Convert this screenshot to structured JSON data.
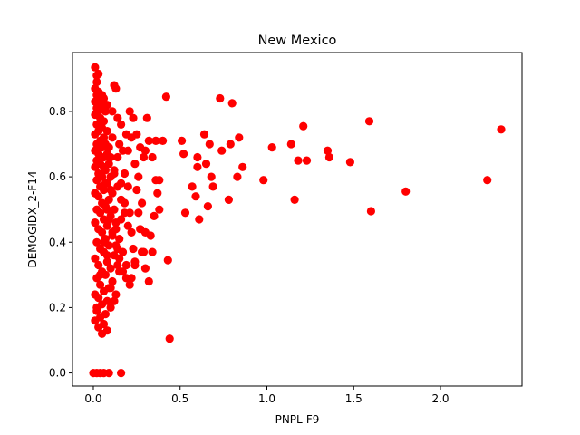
{
  "chart_data": {
    "type": "scatter",
    "title": "New Mexico",
    "xlabel": "PNPL-F9",
    "ylabel": "DEMOGIDX_2-F14",
    "xlim": [
      -0.12,
      2.47
    ],
    "ylim": [
      -0.04,
      0.98
    ],
    "xticks": [
      0.0,
      0.5,
      1.0,
      1.5,
      2.0
    ],
    "xtick_labels": [
      "0.0",
      "0.5",
      "1.0",
      "1.5",
      "2.0"
    ],
    "yticks": [
      0.0,
      0.2,
      0.4,
      0.6,
      0.8
    ],
    "ytick_labels": [
      "0.0",
      "0.2",
      "0.4",
      "0.6",
      "0.8"
    ],
    "grid": false,
    "marker_color": "#ff0000",
    "series": [
      {
        "points": [
          [
            0.01,
            0.935
          ],
          [
            0.02,
            0.91
          ],
          [
            0.03,
            0.915
          ],
          [
            0.02,
            0.89
          ],
          [
            0.01,
            0.87
          ],
          [
            0.03,
            0.86
          ],
          [
            0.02,
            0.85
          ],
          [
            0.05,
            0.85
          ],
          [
            0.01,
            0.83
          ],
          [
            0.04,
            0.83
          ],
          [
            0.06,
            0.84
          ],
          [
            0.02,
            0.81
          ],
          [
            0.05,
            0.81
          ],
          [
            0.03,
            0.8
          ],
          [
            0.07,
            0.8
          ],
          [
            0.01,
            0.79
          ],
          [
            0.04,
            0.78
          ],
          [
            0.06,
            0.77
          ],
          [
            0.02,
            0.76
          ],
          [
            0.05,
            0.75
          ],
          [
            0.03,
            0.74
          ],
          [
            0.08,
            0.74
          ],
          [
            0.01,
            0.73
          ],
          [
            0.06,
            0.72
          ],
          [
            0.04,
            0.71
          ],
          [
            0.02,
            0.7
          ],
          [
            0.07,
            0.7
          ],
          [
            0.05,
            0.69
          ],
          [
            0.01,
            0.68
          ],
          [
            0.03,
            0.67
          ],
          [
            0.08,
            0.67
          ],
          [
            0.06,
            0.66
          ],
          [
            0.02,
            0.65
          ],
          [
            0.04,
            0.64
          ],
          [
            0.09,
            0.64
          ],
          [
            0.01,
            0.63
          ],
          [
            0.07,
            0.62
          ],
          [
            0.03,
            0.61
          ],
          [
            0.05,
            0.6
          ],
          [
            0.1,
            0.6
          ],
          [
            0.02,
            0.59
          ],
          [
            0.08,
            0.58
          ],
          [
            0.04,
            0.57
          ],
          [
            0.06,
            0.56
          ],
          [
            0.01,
            0.55
          ],
          [
            0.11,
            0.55
          ],
          [
            0.03,
            0.54
          ],
          [
            0.09,
            0.53
          ],
          [
            0.05,
            0.52
          ],
          [
            0.07,
            0.51
          ],
          [
            0.02,
            0.5
          ],
          [
            0.12,
            0.5
          ],
          [
            0.04,
            0.49
          ],
          [
            0.1,
            0.48
          ],
          [
            0.06,
            0.47
          ],
          [
            0.01,
            0.46
          ],
          [
            0.08,
            0.45
          ],
          [
            0.03,
            0.44
          ],
          [
            0.13,
            0.44
          ],
          [
            0.05,
            0.43
          ],
          [
            0.11,
            0.42
          ],
          [
            0.07,
            0.41
          ],
          [
            0.02,
            0.4
          ],
          [
            0.09,
            0.39
          ],
          [
            0.04,
            0.38
          ],
          [
            0.14,
            0.38
          ],
          [
            0.06,
            0.37
          ],
          [
            0.12,
            0.36
          ],
          [
            0.01,
            0.35
          ],
          [
            0.08,
            0.34
          ],
          [
            0.03,
            0.33
          ],
          [
            0.1,
            0.32
          ],
          [
            0.05,
            0.31
          ],
          [
            0.15,
            0.31
          ],
          [
            0.07,
            0.3
          ],
          [
            0.02,
            0.29
          ],
          [
            0.11,
            0.28
          ],
          [
            0.04,
            0.27
          ],
          [
            0.09,
            0.26
          ],
          [
            0.06,
            0.25
          ],
          [
            0.01,
            0.24
          ],
          [
            0.13,
            0.24
          ],
          [
            0.03,
            0.23
          ],
          [
            0.08,
            0.22
          ],
          [
            0.05,
            0.21
          ],
          [
            0.1,
            0.2
          ],
          [
            0.02,
            0.19
          ],
          [
            0.07,
            0.18
          ],
          [
            0.04,
            0.17
          ],
          [
            0.01,
            0.16
          ],
          [
            0.06,
            0.15
          ],
          [
            0.03,
            0.14
          ],
          [
            0.08,
            0.13
          ],
          [
            0.05,
            0.12
          ],
          [
            0.02,
            0.2
          ],
          [
            0.04,
            0.3
          ],
          [
            0.06,
            0.4
          ],
          [
            0.08,
            0.5
          ],
          [
            0.1,
            0.56
          ],
          [
            0.12,
            0.62
          ],
          [
            0.14,
            0.66
          ],
          [
            0.16,
            0.58
          ],
          [
            0.18,
            0.52
          ],
          [
            0.13,
            0.46
          ],
          [
            0.15,
            0.41
          ],
          [
            0.17,
            0.37
          ],
          [
            0.19,
            0.33
          ],
          [
            0.16,
            0.47
          ],
          [
            0.18,
            0.61
          ],
          [
            0.2,
            0.57
          ],
          [
            0.21,
            0.49
          ],
          [
            0.22,
            0.43
          ],
          [
            0.23,
            0.38
          ],
          [
            0.24,
            0.33
          ],
          [
            0.2,
            0.68
          ],
          [
            0.22,
            0.72
          ],
          [
            0.24,
            0.64
          ],
          [
            0.25,
            0.56
          ],
          [
            0.26,
            0.49
          ],
          [
            0.27,
            0.44
          ],
          [
            0.28,
            0.37
          ],
          [
            0.3,
            0.32
          ],
          [
            0.32,
            0.28
          ],
          [
            0.34,
            0.37
          ],
          [
            0.3,
            0.43
          ],
          [
            0.28,
            0.52
          ],
          [
            0.26,
            0.6
          ],
          [
            0.3,
            0.68
          ],
          [
            0.32,
            0.71
          ],
          [
            0.34,
            0.66
          ],
          [
            0.36,
            0.59
          ],
          [
            0.37,
            0.55
          ],
          [
            0.38,
            0.5
          ],
          [
            0.35,
            0.48
          ],
          [
            0.33,
            0.42
          ],
          [
            0.29,
            0.37
          ],
          [
            0.24,
            0.34
          ],
          [
            0.22,
            0.29
          ],
          [
            0.12,
            0.88
          ],
          [
            0.13,
            0.87
          ],
          [
            0.08,
            0.82
          ],
          [
            0.11,
            0.8
          ],
          [
            0.14,
            0.78
          ],
          [
            0.16,
            0.76
          ],
          [
            0.19,
            0.73
          ],
          [
            0.21,
            0.8
          ],
          [
            0.23,
            0.78
          ],
          [
            0.31,
            0.78
          ],
          [
            0.25,
            0.73
          ],
          [
            0.15,
            0.7
          ],
          [
            0.17,
            0.68
          ],
          [
            0.27,
            0.69
          ],
          [
            0.29,
            0.66
          ],
          [
            0.1,
            0.66
          ],
          [
            0.12,
            0.61
          ],
          [
            0.14,
            0.57
          ],
          [
            0.16,
            0.53
          ],
          [
            0.18,
            0.49
          ],
          [
            0.2,
            0.45
          ],
          [
            0.09,
            0.47
          ],
          [
            0.11,
            0.43
          ],
          [
            0.13,
            0.39
          ],
          [
            0.15,
            0.35
          ],
          [
            0.17,
            0.31
          ],
          [
            0.19,
            0.29
          ],
          [
            0.21,
            0.27
          ],
          [
            0.1,
            0.26
          ],
          [
            0.12,
            0.22
          ],
          [
            0.14,
            0.33
          ],
          [
            0.08,
            0.36
          ],
          [
            0.06,
            0.63
          ],
          [
            0.07,
            0.58
          ],
          [
            0.09,
            0.69
          ],
          [
            0.11,
            0.72
          ],
          [
            0.42,
            0.845
          ],
          [
            0.43,
            0.345
          ],
          [
            0.44,
            0.105
          ],
          [
            0.4,
            0.71
          ],
          [
            0.36,
            0.71
          ],
          [
            0.38,
            0.59
          ],
          [
            0.51,
            0.71
          ],
          [
            0.52,
            0.67
          ],
          [
            0.53,
            0.49
          ],
          [
            0.57,
            0.57
          ],
          [
            0.59,
            0.54
          ],
          [
            0.6,
            0.66
          ],
          [
            0.6,
            0.63
          ],
          [
            0.61,
            0.47
          ],
          [
            0.64,
            0.73
          ],
          [
            0.65,
            0.64
          ],
          [
            0.66,
            0.51
          ],
          [
            0.67,
            0.7
          ],
          [
            0.68,
            0.6
          ],
          [
            0.69,
            0.57
          ],
          [
            0.73,
            0.84
          ],
          [
            0.74,
            0.68
          ],
          [
            0.78,
            0.53
          ],
          [
            0.79,
            0.7
          ],
          [
            0.8,
            0.825
          ],
          [
            0.83,
            0.6
          ],
          [
            0.84,
            0.72
          ],
          [
            0.86,
            0.63
          ],
          [
            0.98,
            0.59
          ],
          [
            1.03,
            0.69
          ],
          [
            1.14,
            0.7
          ],
          [
            1.16,
            0.53
          ],
          [
            1.18,
            0.65
          ],
          [
            1.21,
            0.755
          ],
          [
            1.23,
            0.65
          ],
          [
            1.35,
            0.68
          ],
          [
            1.36,
            0.66
          ],
          [
            1.48,
            0.645
          ],
          [
            1.59,
            0.77
          ],
          [
            1.6,
            0.495
          ],
          [
            1.8,
            0.555
          ],
          [
            2.27,
            0.59
          ],
          [
            2.35,
            0.745
          ],
          [
            0.0,
            0.0
          ],
          [
            0.02,
            0.0
          ],
          [
            0.04,
            0.0
          ],
          [
            0.06,
            0.0
          ],
          [
            0.09,
            0.0
          ],
          [
            0.16,
            0.0
          ]
        ]
      }
    ]
  }
}
